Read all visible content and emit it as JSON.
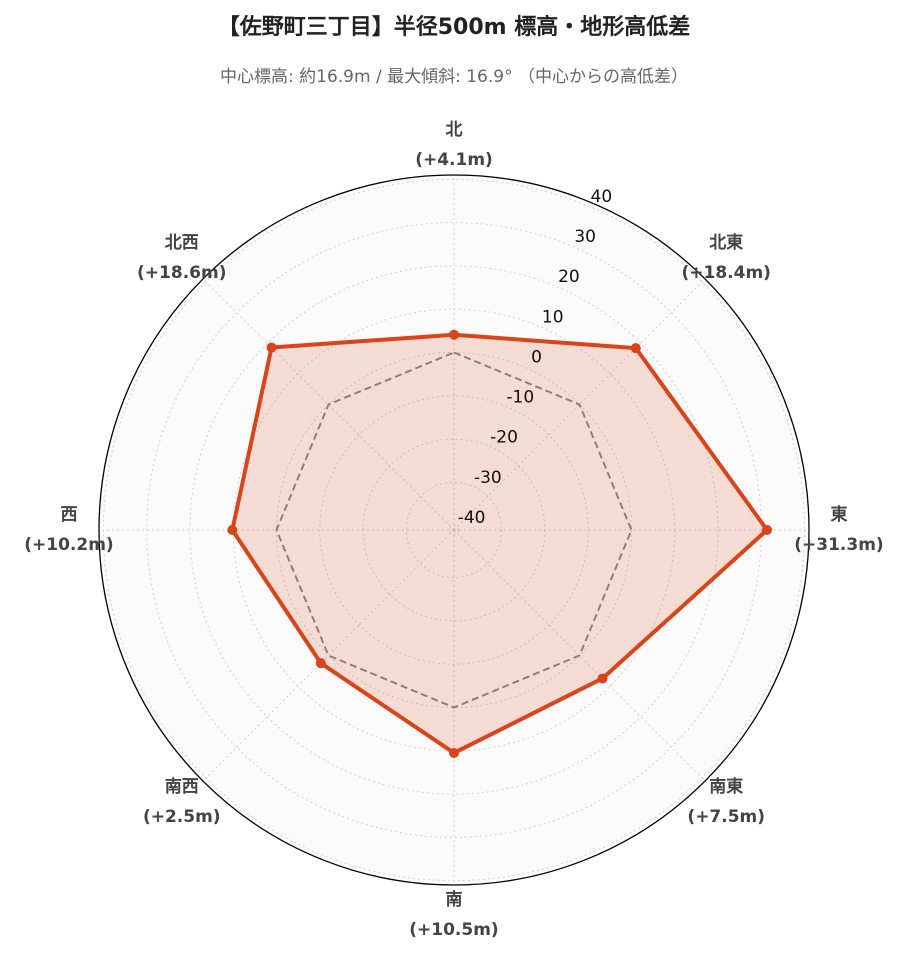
{
  "chart_data": {
    "type": "radar",
    "title": "【佐野町三丁目】半径500m 標高・地形高低差",
    "subtitle": "中心標高: 約16.9m / 最大傾斜: 16.9° （中心からの高低差）",
    "categories": [
      "北",
      "北東",
      "東",
      "南東",
      "南",
      "南西",
      "西",
      "北西"
    ],
    "values": [
      4.1,
      18.4,
      31.3,
      7.5,
      10.5,
      2.5,
      10.2,
      18.6
    ],
    "value_labels": [
      "(+4.1m)",
      "(+18.4m)",
      "(+31.3m)",
      "(+7.5m)",
      "(+10.5m)",
      "(+2.5m)",
      "(+10.2m)",
      "(+18.6m)"
    ],
    "color": "#d9441a",
    "baseline": 0,
    "ylim": [
      -41,
      41
    ],
    "yticks": [
      -40,
      -30,
      -20,
      -10,
      0,
      10,
      20,
      30,
      40
    ],
    "grid": true
  }
}
